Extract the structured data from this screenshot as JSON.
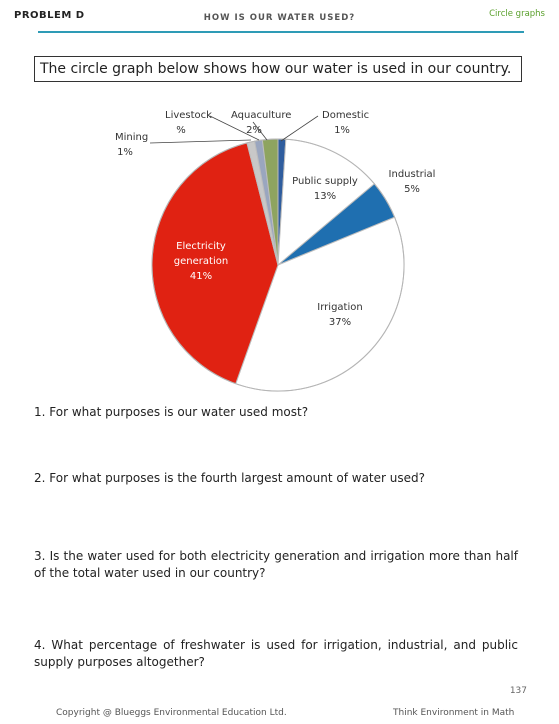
{
  "header": {
    "problem": "PROBLEM D",
    "title": "HOW IS OUR WATER USED?",
    "tag": "Circle graphs"
  },
  "intro": "The circle graph below shows how our water is used in our country.",
  "chart_data": {
    "type": "pie",
    "title": "",
    "slices": [
      {
        "label": "Domestic",
        "value": 1,
        "value_label": "1%",
        "color": "#2f5d9e"
      },
      {
        "label": "Public supply",
        "value": 13,
        "value_label": "13%",
        "color": "#ffffff"
      },
      {
        "label": "Industrial",
        "value": 5,
        "value_label": "5%",
        "color": "#1f6fb0"
      },
      {
        "label": "Irrigation",
        "value": 37,
        "value_label": "37%",
        "color": "#ffffff"
      },
      {
        "label": "Electricity generation",
        "value": 41,
        "value_label": "41%",
        "color": "#e02212"
      },
      {
        "label": "Mining",
        "value": 1,
        "value_label": "1%",
        "color": "#c8c8c8"
      },
      {
        "label": "Livestock",
        "value": 1,
        "value_label": "%",
        "color": "#9aa6bf"
      },
      {
        "label": "Aquaculture",
        "value": 2,
        "value_label": "2%",
        "color": "#8ea460"
      }
    ]
  },
  "questions": [
    "1. For what purposes is our water used most?",
    "2. For what purposes is the fourth largest amount of water used?",
    "3. Is the water used for both electricity generation and irrigation more than half of the total water used in our country?",
    "4. What percentage of freshwater is used for irrigation, industrial, and public supply purposes altogether?"
  ],
  "footer": {
    "page_number": "137",
    "copyright": "Copyright @ Blueggs Environmental Education Ltd.",
    "series": "Think Environment in Math"
  }
}
